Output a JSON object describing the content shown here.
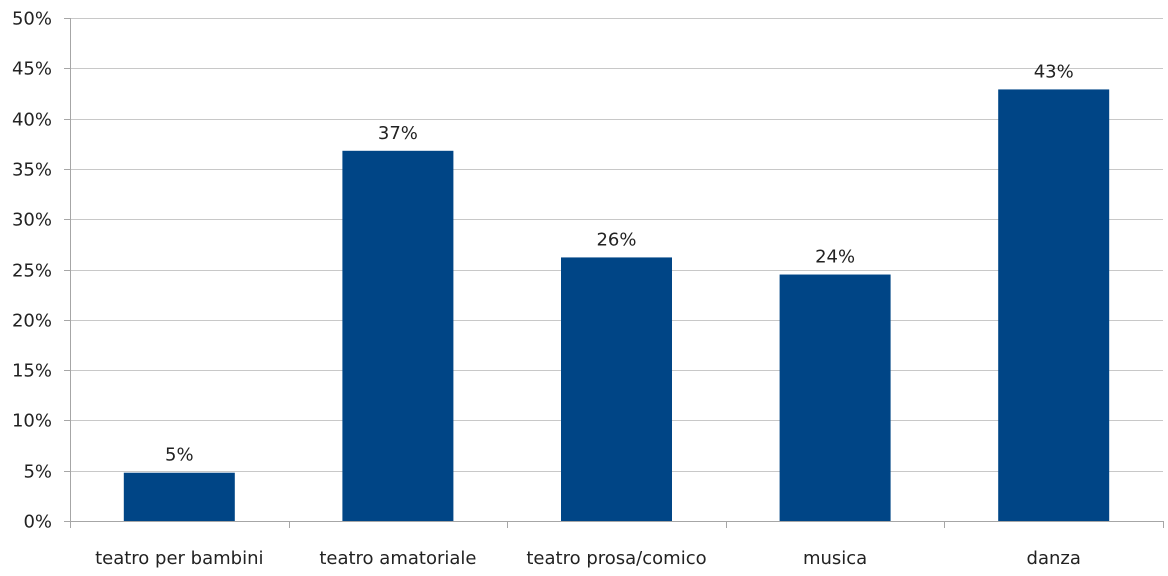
{
  "chart_data": {
    "type": "bar",
    "categories": [
      "teatro per bambini",
      "teatro amatoriale",
      "teatro prosa/comico",
      "musica",
      "danza"
    ],
    "values": [
      4.8,
      36.8,
      26.2,
      24.5,
      42.9
    ],
    "data_labels": [
      "5%",
      "37%",
      "26%",
      "24%",
      "43%"
    ],
    "y_ticks": [
      "0%",
      "5%",
      "10%",
      "15%",
      "20%",
      "25%",
      "30%",
      "35%",
      "40%",
      "45%",
      "50%"
    ],
    "ylim": [
      0,
      50
    ],
    "grid": true,
    "legend": "none",
    "bar_color": "#004586"
  }
}
